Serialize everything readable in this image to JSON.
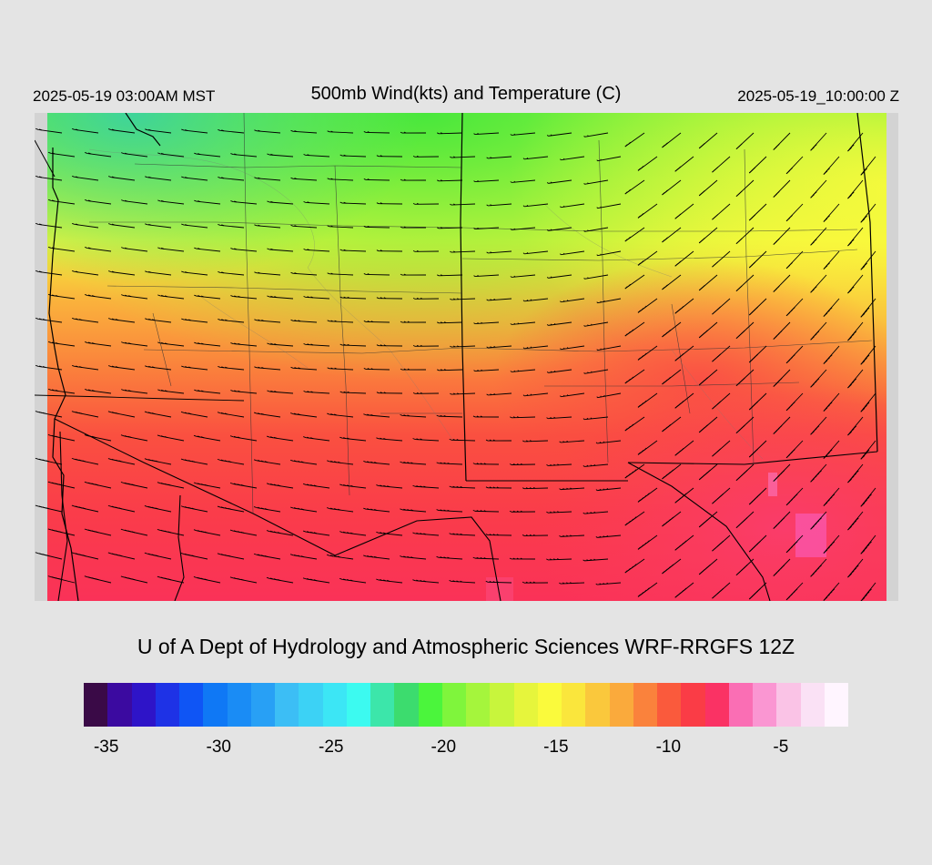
{
  "header": {
    "left_time": "2025-05-19 03:00AM MST",
    "title": "500mb Wind(kts) and Temperature (C)",
    "right_time": "2025-05-19_10:00:00 Z"
  },
  "credit": "U of A Dept of Hydrology and Atmospheric Sciences WRF-RRGFS 12Z",
  "colorbar": {
    "colors": [
      "#3a0a47",
      "#3b0aa0",
      "#2e14c8",
      "#1e32e6",
      "#0f55f5",
      "#0f78f5",
      "#1a8cf5",
      "#28a0f5",
      "#3cbef5",
      "#3cd2f5",
      "#3ce6f5",
      "#3cfaf0",
      "#3ce6aa",
      "#3cdc6e",
      "#4bf53c",
      "#7ff53c",
      "#a5f53c",
      "#c8f53c",
      "#e6f53c",
      "#fafa3c",
      "#fae63c",
      "#fac83c",
      "#faaa3c",
      "#fa823c",
      "#fa5a3c",
      "#fa3c46",
      "#fa3264",
      "#fa6eb4",
      "#fa96d2",
      "#fac3e6",
      "#fae1f5",
      "#fff5ff"
    ],
    "labels": [
      "-35",
      "-30",
      "-25",
      "-20",
      "-15",
      "-10",
      "-5"
    ],
    "label_values": [
      -35,
      -30,
      -25,
      -20,
      -15,
      -10,
      -5
    ],
    "range": [
      -36,
      -2
    ]
  },
  "map": {
    "field": "500mb temperature (C) with wind barbs (kts)",
    "temp_legend_units": "C"
  }
}
